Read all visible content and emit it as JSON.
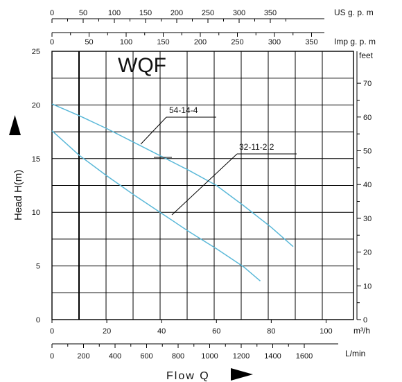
{
  "chart_data": {
    "type": "line",
    "title": "WQF",
    "ylabel": "Head   H(m)",
    "xlabel": "Flow  Q",
    "xlim": [
      0,
      110
    ],
    "ylim": [
      0,
      25
    ],
    "grid": true,
    "x_unit": "m³/h",
    "y_ticks": [
      "0",
      "5",
      "10",
      "15",
      "20",
      "25"
    ],
    "x_ticks": [
      "0",
      "20",
      "40",
      "60",
      "80",
      "100"
    ],
    "secondary_axes": {
      "feet": {
        "unit": "feet",
        "ticks": [
          "0",
          "10",
          "20",
          "30",
          "40",
          "50",
          "60",
          "70"
        ]
      },
      "us_gpm": {
        "unit": "US g. p. m",
        "ticks": [
          "0",
          "50",
          "100",
          "150",
          "200",
          "250",
          "300",
          "350"
        ]
      },
      "imp_gpm": {
        "unit": "Imp g. p. m",
        "ticks": [
          "0",
          "50",
          "100",
          "150",
          "200",
          "250",
          "300",
          "350"
        ]
      },
      "l_min": {
        "unit": "L/min",
        "ticks": [
          "0",
          "200",
          "400",
          "600",
          "800",
          "1000",
          "1200",
          "1400",
          "1600"
        ]
      }
    },
    "series": [
      {
        "name": "54-14-4",
        "color": "#5ab8d8",
        "x": [
          0,
          10,
          20,
          30,
          40,
          50,
          60,
          70,
          80,
          88
        ],
        "y": [
          20.1,
          19.0,
          17.8,
          16.5,
          15.2,
          13.9,
          12.5,
          10.6,
          8.6,
          6.8
        ]
      },
      {
        "name": "32-11-2.2",
        "color": "#5ab8d8",
        "x": [
          0,
          10,
          20,
          30,
          40,
          50,
          60,
          70,
          76
        ],
        "y": [
          17.6,
          15.3,
          13.4,
          11.6,
          9.9,
          8.2,
          6.6,
          4.9,
          3.6
        ]
      }
    ]
  }
}
